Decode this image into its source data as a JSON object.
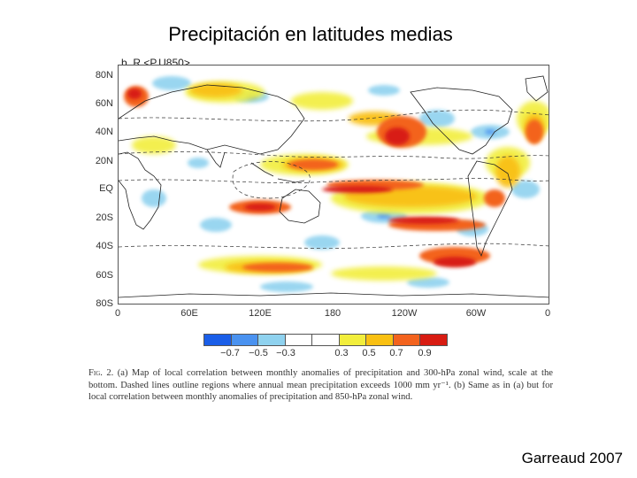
{
  "slide": {
    "title": "Precipitación en latitudes medias",
    "credit": "Garreaud 2007"
  },
  "figure": {
    "panel_label": "b. R <P,U850>",
    "lat_labels": [
      "80N",
      "60N",
      "40N",
      "20N",
      "EQ",
      "20S",
      "40S",
      "60S",
      "80S"
    ],
    "lon_labels": [
      "0",
      "60E",
      "120E",
      "180",
      "120W",
      "60W",
      "0"
    ],
    "colorbar": {
      "colors": [
        "#1a5ee8",
        "#4a92f0",
        "#8fd2ef",
        "#ffffff",
        "#ffffff",
        "#f2ee3c",
        "#f9c012",
        "#f3631e",
        "#d81c12"
      ],
      "tick_labels": [
        "−0.7",
        "−0.5",
        "−0.3",
        "0.3",
        "0.5",
        "0.7",
        "0.9"
      ]
    },
    "caption": {
      "fig_label": "Fig. 2.",
      "text": "(a) Map of local correlation between monthly anomalies of precipitation and 300-hPa zonal wind, scale at the bottom. Dashed lines outline regions where annual mean precipitation exceeds 1000 mm yr⁻¹. (b) Same as in (a) but for local correlation between monthly anomalies of precipitation and 850-hPa zonal wind."
    }
  }
}
